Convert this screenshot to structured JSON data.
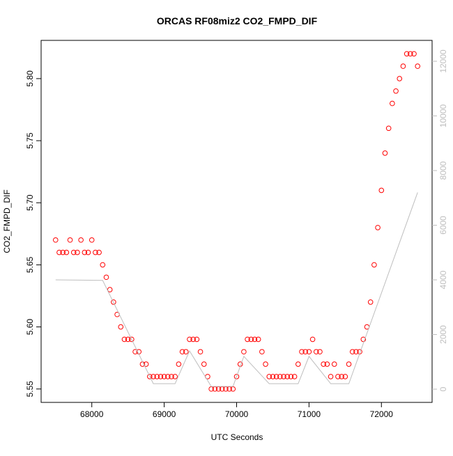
{
  "chart_data": {
    "type": "scatter",
    "title": "ORCAS RF08miz2 CO2_FMPD_DIF",
    "xlabel": "UTC Seconds",
    "ylabel": "CO2_FMPD_DIF",
    "xlim": [
      67300,
      72700
    ],
    "xticks": [
      68000,
      69000,
      70000,
      71000,
      72000
    ],
    "ylim": [
      5.5392,
      5.8308
    ],
    "yticks": [
      5.55,
      {
        "value": 5.6,
        "label": "5.60"
      },
      5.65,
      {
        "value": 5.7,
        "label": "5.70"
      },
      5.75,
      {
        "value": 5.8,
        "label": "5.80"
      }
    ],
    "y2lim": [
      -484,
      12764
    ],
    "y2ticks": [
      0,
      2000,
      4000,
      6000,
      8000,
      10000,
      12000
    ],
    "series": [
      {
        "type": "scatter",
        "color": "#ff0000",
        "x": [
          67500,
          67550,
          67600,
          67650,
          67700,
          67750,
          67800,
          67850,
          67900,
          67950,
          68000,
          68050,
          68100,
          68150,
          68200,
          68250,
          68300,
          68350,
          68400,
          68450,
          68500,
          68550,
          68600,
          68650,
          68700,
          68750,
          68800,
          68850,
          68900,
          68950,
          69000,
          69050,
          69100,
          69150,
          69200,
          69250,
          69300,
          69350,
          69400,
          69450,
          69500,
          69550,
          69600,
          69650,
          69700,
          69750,
          69800,
          69850,
          69900,
          69950,
          70000,
          70050,
          70100,
          70150,
          70200,
          70250,
          70300,
          70350,
          70400,
          70450,
          70500,
          70550,
          70600,
          70650,
          70700,
          70750,
          70800,
          70850,
          70900,
          70950,
          71000,
          71050,
          71100,
          71150,
          71200,
          71250,
          71300,
          71350,
          71400,
          71450,
          71500,
          71550,
          71600,
          71650,
          71700,
          71750,
          71800,
          71850,
          71900,
          71950,
          72000,
          72050,
          72100,
          72150,
          72200,
          72250,
          72300,
          72350,
          72400,
          72450,
          72500
        ],
        "values": [
          5.67,
          5.66,
          5.66,
          5.66,
          5.67,
          5.66,
          5.66,
          5.67,
          5.66,
          5.66,
          5.67,
          5.66,
          5.66,
          5.65,
          5.64,
          5.63,
          5.62,
          5.61,
          5.6,
          5.59,
          5.59,
          5.59,
          5.58,
          5.58,
          5.57,
          5.57,
          5.56,
          5.56,
          5.56,
          5.56,
          5.56,
          5.56,
          5.56,
          5.56,
          5.57,
          5.58,
          5.58,
          5.59,
          5.59,
          5.59,
          5.58,
          5.57,
          5.56,
          5.55,
          5.55,
          5.55,
          5.55,
          5.55,
          5.55,
          5.55,
          5.56,
          5.57,
          5.58,
          5.59,
          5.59,
          5.59,
          5.59,
          5.58,
          5.57,
          5.56,
          5.56,
          5.56,
          5.56,
          5.56,
          5.56,
          5.56,
          5.56,
          5.57,
          5.58,
          5.58,
          5.58,
          5.59,
          5.58,
          5.58,
          5.57,
          5.57,
          5.56,
          5.57,
          5.56,
          5.56,
          5.56,
          5.57,
          5.58,
          5.58,
          5.58,
          5.59,
          5.6,
          5.62,
          5.65,
          5.68,
          5.71,
          5.74,
          5.76,
          5.78,
          5.79,
          5.8,
          5.81,
          5.82,
          5.82,
          5.82,
          5.81
        ]
      },
      {
        "type": "line",
        "axis": "y2",
        "color": "#bebebe",
        "x": [
          67500,
          68150,
          68850,
          69150,
          69350,
          69650,
          69950,
          70100,
          70450,
          70850,
          71000,
          71300,
          71550,
          72500
        ],
        "values": [
          4000,
          3980,
          200,
          200,
          1400,
          100,
          100,
          1200,
          200,
          200,
          1200,
          200,
          200,
          7200
        ]
      }
    ]
  }
}
